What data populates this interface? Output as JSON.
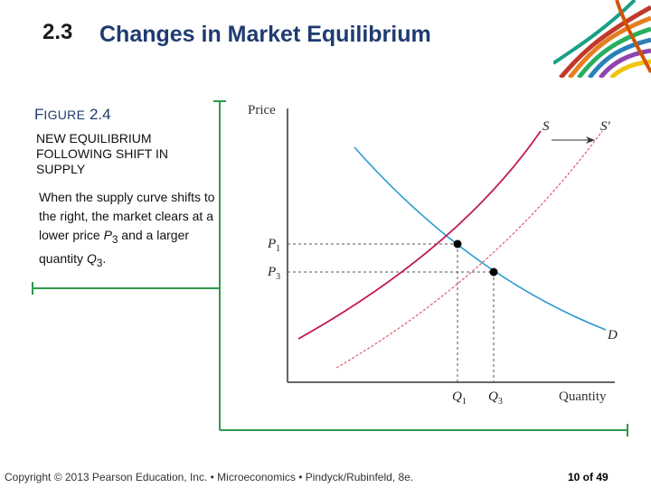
{
  "header": {
    "section_number": "2.3",
    "title": "Changes in Market Equilibrium"
  },
  "figure": {
    "label_lead": "F",
    "label_rest": "IGURE",
    "label_number": "2.4",
    "subtitle": "NEW EQUILIBRIUM FOLLOWING SHIFT IN SUPPLY",
    "description": {
      "part1": "When the supply curve shifts to the right, the market clears at a lower price ",
      "p_var": "P",
      "p_sub": "3",
      "part2": " and a larger quantity ",
      "q_var": "Q",
      "q_sub": "3",
      "part3": "."
    }
  },
  "diagram": {
    "y_axis_label": "Price",
    "x_axis_label": "Quantity",
    "p1_label": "P",
    "p1_sub": "1",
    "p3_label": "P",
    "p3_sub": "3",
    "q1_label": "Q",
    "q1_sub": "1",
    "q3_label": "Q",
    "q3_sub": "3",
    "supply_label": "S",
    "shifted_supply_label": "S′",
    "demand_label": "D",
    "colors": {
      "supply": "#c0185a",
      "shifted_supply": "#e05a6a",
      "demand": "#2a9ad0",
      "axis": "#333333",
      "dashed": "#555555",
      "points": "#000000",
      "bracket": "#2e9a4a"
    }
  },
  "footer": {
    "copyright": "Copyright © 2013 Pearson Education, Inc. • Microeconomics • Pindyck/Rubinfeld, 8e.",
    "page": "10 of 49"
  }
}
